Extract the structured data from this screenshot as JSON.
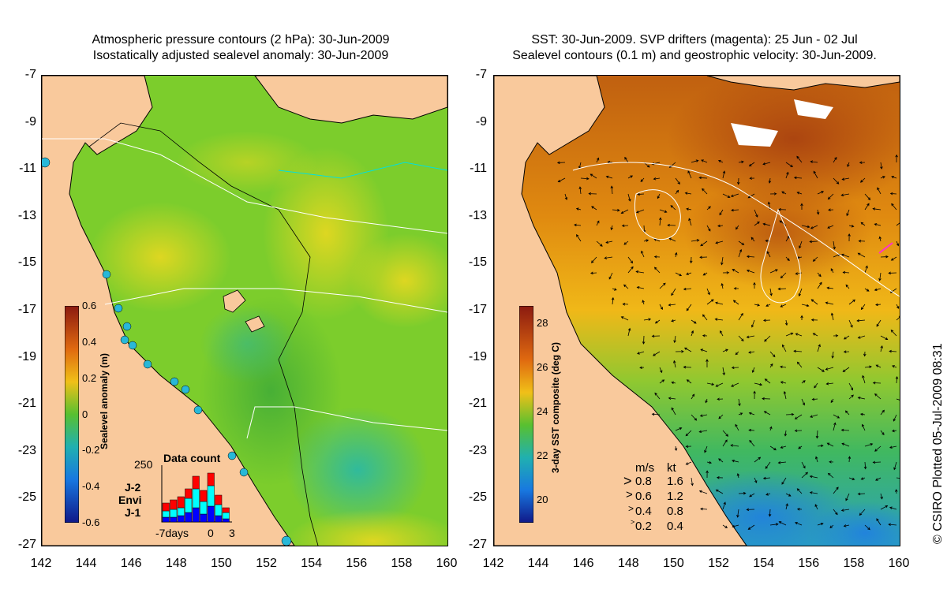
{
  "left_panel": {
    "title_line1": "Atmospheric pressure contours (2 hPa): 30-Jun-2009",
    "title_line2": "Isostatically adjusted sealevel anomaly: 30-Jun-2009",
    "colorbar_label": "Sealevel anomaly (m)",
    "colorbar_ticks": [
      "0.6",
      "0.4",
      "0.2",
      "0",
      "-0.2",
      "-0.4",
      "-0.6"
    ],
    "data_count": {
      "title": "Data count",
      "y_max_label": "250",
      "x_labels": [
        "-7days",
        "0",
        "3"
      ],
      "legend": [
        {
          "label": "J-2",
          "color": "#ff0000"
        },
        {
          "label": "Envi",
          "color": "#00ffff"
        },
        {
          "label": "J-1",
          "color": "#0000ff"
        }
      ]
    }
  },
  "right_panel": {
    "title_line1": "SST: 30-Jun-2009. SVP drifters (magenta): 25 Jun - 02 Jul",
    "title_line2": "Sealevel contours (0.1 m) and geostrophic velocity: 30-Jun-2009.",
    "colorbar_label": "3-day SST composite (deg C)",
    "colorbar_ticks": [
      "28",
      "26",
      "24",
      "22",
      "20"
    ],
    "velocity_legend": {
      "header_ms": "m/s",
      "header_kt": "kt",
      "rows": [
        {
          "ms": "0.8",
          "kt": "1.6"
        },
        {
          "ms": "0.6",
          "kt": "1.2"
        },
        {
          "ms": "0.4",
          "kt": "0.8"
        },
        {
          "ms": "0.2",
          "kt": "0.4"
        }
      ]
    }
  },
  "axes": {
    "y_ticks": [
      "-7",
      "-9",
      "-11",
      "-13",
      "-15",
      "-17",
      "-19",
      "-21",
      "-23",
      "-25",
      "-27"
    ],
    "x_ticks": [
      "142",
      "144",
      "146",
      "148",
      "150",
      "152",
      "154",
      "156",
      "158",
      "160"
    ]
  },
  "plot_stamp": "© CSIRO Plotted 05-Jul-2009 08:31",
  "colors": {
    "land": "#f9c99c",
    "sea_anomaly_base": "#7ccd2c",
    "sst_warm": "#d9750f",
    "sst_cool": "#3a9ed8"
  }
}
